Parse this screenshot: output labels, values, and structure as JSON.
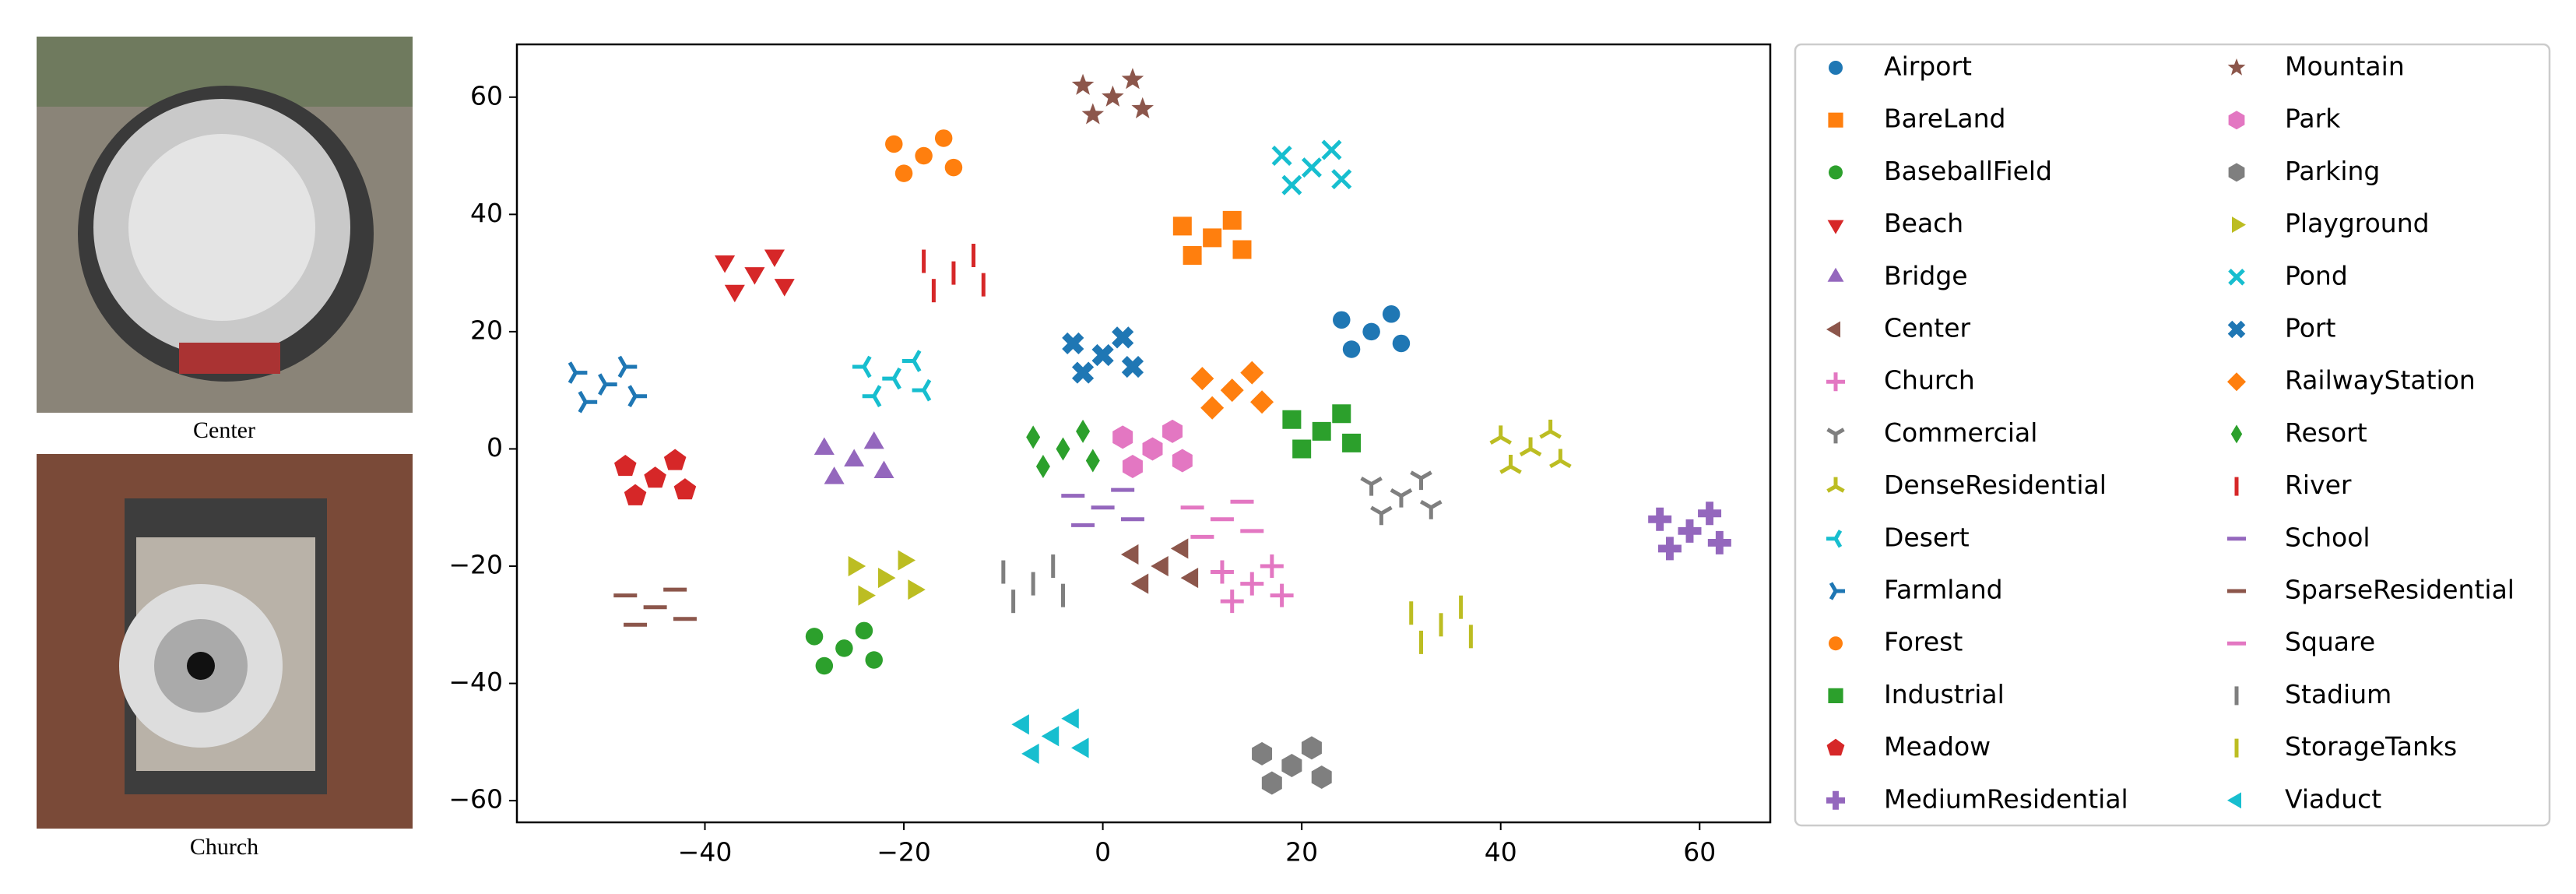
{
  "images": [
    {
      "caption": "Center"
    },
    {
      "caption": "Church"
    }
  ],
  "chart_data": {
    "type": "scatter",
    "xlim": [
      -58.9,
      67.1
    ],
    "ylim": [
      -63.7,
      69
    ],
    "xticks": [
      {
        "value": -40,
        "label": "−40"
      },
      {
        "value": -20,
        "label": "−20"
      },
      0,
      20,
      40,
      60
    ],
    "yticks": [
      {
        "value": -60,
        "label": "−60"
      },
      {
        "value": -40,
        "label": "−40"
      },
      {
        "value": -20,
        "label": "−20"
      },
      0,
      20,
      40,
      60
    ],
    "legend": "outside right",
    "series": [
      {
        "name": "Airport",
        "color": "#1f77b4",
        "marker": "o",
        "x": [
          27,
          24,
          30,
          25,
          29
        ],
        "y": [
          20,
          22,
          18,
          17,
          23
        ]
      },
      {
        "name": "BareLand",
        "color": "#ff7f0e",
        "marker": "s",
        "x": [
          11,
          8,
          14,
          9,
          13
        ],
        "y": [
          36,
          38,
          34,
          33,
          39
        ]
      },
      {
        "name": "BaseballField",
        "color": "#2ca02c",
        "marker": "o",
        "x": [
          -26,
          -29,
          -23,
          -28,
          -24
        ],
        "y": [
          -34,
          -32,
          -36,
          -37,
          -31
        ]
      },
      {
        "name": "Beach",
        "color": "#d62728",
        "marker": "v",
        "x": [
          -35,
          -38,
          -32,
          -37,
          -33
        ],
        "y": [
          30,
          32,
          28,
          27,
          33
        ]
      },
      {
        "name": "Bridge",
        "color": "#9467bd",
        "marker": "^",
        "x": [
          -25,
          -28,
          -22,
          -27,
          -23
        ],
        "y": [
          -2,
          0,
          -4,
          -5,
          1
        ]
      },
      {
        "name": "Center",
        "color": "#8c564b",
        "marker": "<",
        "x": [
          6,
          3,
          9,
          4,
          8
        ],
        "y": [
          -20,
          -18,
          -22,
          -23,
          -17
        ]
      },
      {
        "name": "Church",
        "color": "#e377c2",
        "marker": "+",
        "x": [
          15,
          12,
          18,
          13,
          17
        ],
        "y": [
          -23,
          -21,
          -25,
          -26,
          -20
        ]
      },
      {
        "name": "Commercial",
        "color": "#7f7f7f",
        "marker": "1",
        "x": [
          30,
          27,
          33,
          28,
          32
        ],
        "y": [
          -8,
          -6,
          -10,
          -11,
          -5
        ]
      },
      {
        "name": "DenseResidential",
        "color": "#bcbd22",
        "marker": "2",
        "x": [
          43,
          40,
          46,
          41,
          45
        ],
        "y": [
          0,
          2,
          -2,
          -3,
          3
        ]
      },
      {
        "name": "Desert",
        "color": "#17becf",
        "marker": "3",
        "x": [
          -21,
          -24,
          -18,
          -23,
          -19
        ],
        "y": [
          12,
          14,
          10,
          9,
          15
        ]
      },
      {
        "name": "Farmland",
        "color": "#1f77b4",
        "marker": "4",
        "x": [
          -50,
          -53,
          -47,
          -52,
          -48
        ],
        "y": [
          11,
          13,
          9,
          8,
          14
        ]
      },
      {
        "name": "Forest",
        "color": "#ff7f0e",
        "marker": "o",
        "x": [
          -18,
          -21,
          -15,
          -20,
          -16
        ],
        "y": [
          50,
          52,
          48,
          47,
          53
        ]
      },
      {
        "name": "Industrial",
        "color": "#2ca02c",
        "marker": "s",
        "x": [
          22,
          19,
          25,
          20,
          24
        ],
        "y": [
          3,
          5,
          1,
          0,
          6
        ]
      },
      {
        "name": "Meadow",
        "color": "#d62728",
        "marker": "p",
        "x": [
          -45,
          -48,
          -42,
          -47,
          -43
        ],
        "y": [
          -5,
          -3,
          -7,
          -8,
          -2
        ]
      },
      {
        "name": "MediumResidential",
        "color": "#9467bd",
        "marker": "P",
        "x": [
          59,
          56,
          62,
          57,
          61
        ],
        "y": [
          -14,
          -12,
          -16,
          -17,
          -11
        ]
      },
      {
        "name": "Mountain",
        "color": "#8c564b",
        "marker": "*",
        "x": [
          1,
          -2,
          4,
          -1,
          3
        ],
        "y": [
          60,
          62,
          58,
          57,
          63
        ]
      },
      {
        "name": "Park",
        "color": "#e377c2",
        "marker": "h",
        "x": [
          5,
          2,
          8,
          3,
          7
        ],
        "y": [
          0,
          2,
          -2,
          -3,
          3
        ]
      },
      {
        "name": "Parking",
        "color": "#7f7f7f",
        "marker": "h",
        "x": [
          19,
          16,
          22,
          17,
          21
        ],
        "y": [
          -54,
          -52,
          -56,
          -57,
          -51
        ]
      },
      {
        "name": "Playground",
        "color": "#bcbd22",
        "marker": ">",
        "x": [
          -22,
          -25,
          -19,
          -24,
          -20
        ],
        "y": [
          -22,
          -20,
          -24,
          -25,
          -19
        ]
      },
      {
        "name": "Pond",
        "color": "#17becf",
        "marker": "x",
        "x": [
          21,
          18,
          24,
          19,
          23
        ],
        "y": [
          48,
          50,
          46,
          45,
          51
        ]
      },
      {
        "name": "Port",
        "color": "#1f77b4",
        "marker": "X",
        "x": [
          0,
          -3,
          3,
          -2,
          2
        ],
        "y": [
          16,
          18,
          14,
          13,
          19
        ]
      },
      {
        "name": "RailwayStation",
        "color": "#ff7f0e",
        "marker": "D",
        "x": [
          13,
          10,
          16,
          11,
          15
        ],
        "y": [
          10,
          12,
          8,
          7,
          13
        ]
      },
      {
        "name": "Resort",
        "color": "#2ca02c",
        "marker": "d",
        "x": [
          -4,
          -7,
          -1,
          -6,
          -2
        ],
        "y": [
          0,
          2,
          -2,
          -3,
          3
        ]
      },
      {
        "name": "River",
        "color": "#d62728",
        "marker": "|",
        "x": [
          -15,
          -18,
          -12,
          -17,
          -13
        ],
        "y": [
          30,
          32,
          28,
          27,
          33
        ]
      },
      {
        "name": "School",
        "color": "#9467bd",
        "marker": "_",
        "x": [
          0,
          -3,
          3,
          -2,
          2
        ],
        "y": [
          -10,
          -8,
          -12,
          -13,
          -7
        ]
      },
      {
        "name": "SparseResidential",
        "color": "#8c564b",
        "marker": "_",
        "x": [
          -45,
          -48,
          -42,
          -47,
          -43
        ],
        "y": [
          -27,
          -25,
          -29,
          -30,
          -24
        ]
      },
      {
        "name": "Square",
        "color": "#e377c2",
        "marker": "_",
        "x": [
          12,
          9,
          15,
          10,
          14
        ],
        "y": [
          -12,
          -10,
          -14,
          -15,
          -9
        ]
      },
      {
        "name": "Stadium",
        "color": "#7f7f7f",
        "marker": "|",
        "x": [
          -7,
          -10,
          -4,
          -9,
          -5
        ],
        "y": [
          -23,
          -21,
          -25,
          -26,
          -20
        ]
      },
      {
        "name": "StorageTanks",
        "color": "#bcbd22",
        "marker": "|",
        "x": [
          34,
          31,
          37,
          32,
          36
        ],
        "y": [
          -30,
          -28,
          -32,
          -33,
          -27
        ]
      },
      {
        "name": "Viaduct",
        "color": "#17becf",
        "marker": "<",
        "x": [
          -5,
          -8,
          -2,
          -7,
          -3
        ],
        "y": [
          -49,
          -47,
          -51,
          -52,
          -46
        ]
      }
    ]
  }
}
